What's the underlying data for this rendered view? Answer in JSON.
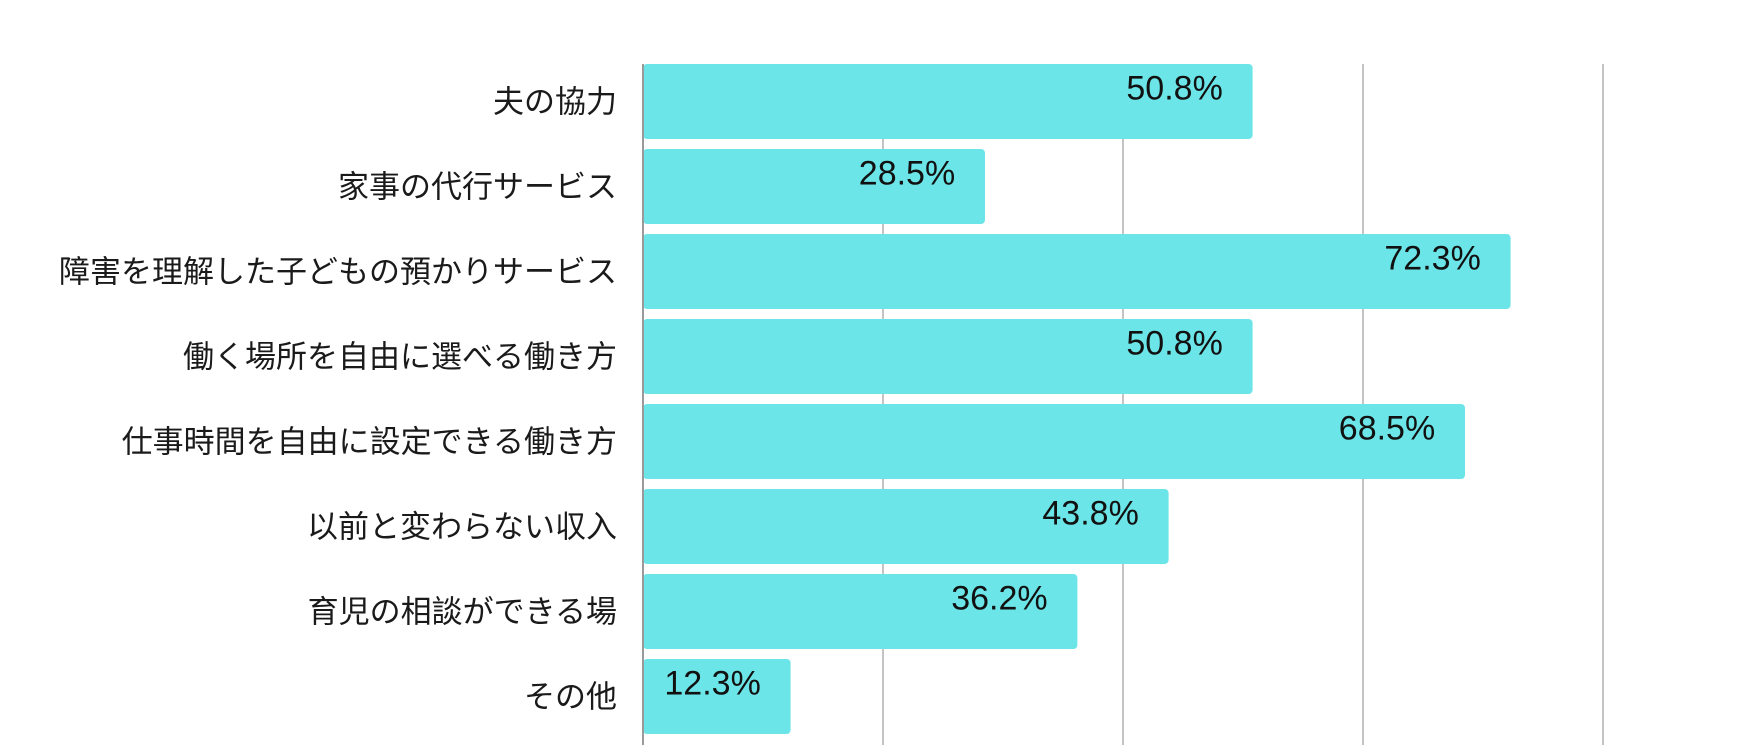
{
  "chart_data": {
    "type": "bar",
    "orientation": "horizontal",
    "categories": [
      "夫の協力",
      "家事の代行サービス",
      "障害を理解した子どもの預かりサービス",
      "働く場所を自由に選べる働き方",
      "仕事時間を自由に設定できる働き方",
      "以前と変わらない収入",
      "育児の相談ができる場",
      "その他"
    ],
    "values": [
      50.8,
      28.5,
      72.3,
      50.8,
      68.5,
      43.8,
      36.2,
      12.3
    ],
    "value_labels": [
      "50.8%",
      "28.5%",
      "72.3%",
      "50.8%",
      "68.5%",
      "43.8%",
      "36.2%",
      "12.3%"
    ],
    "unit": "%",
    "xlim": [
      0,
      80
    ],
    "grid_step": 20,
    "grid": true,
    "legend": "none",
    "colors": {
      "bar": "#6ce5e8",
      "grid": "#c4c4c4",
      "axis": "#9a9a9a",
      "text": "#111111"
    }
  }
}
